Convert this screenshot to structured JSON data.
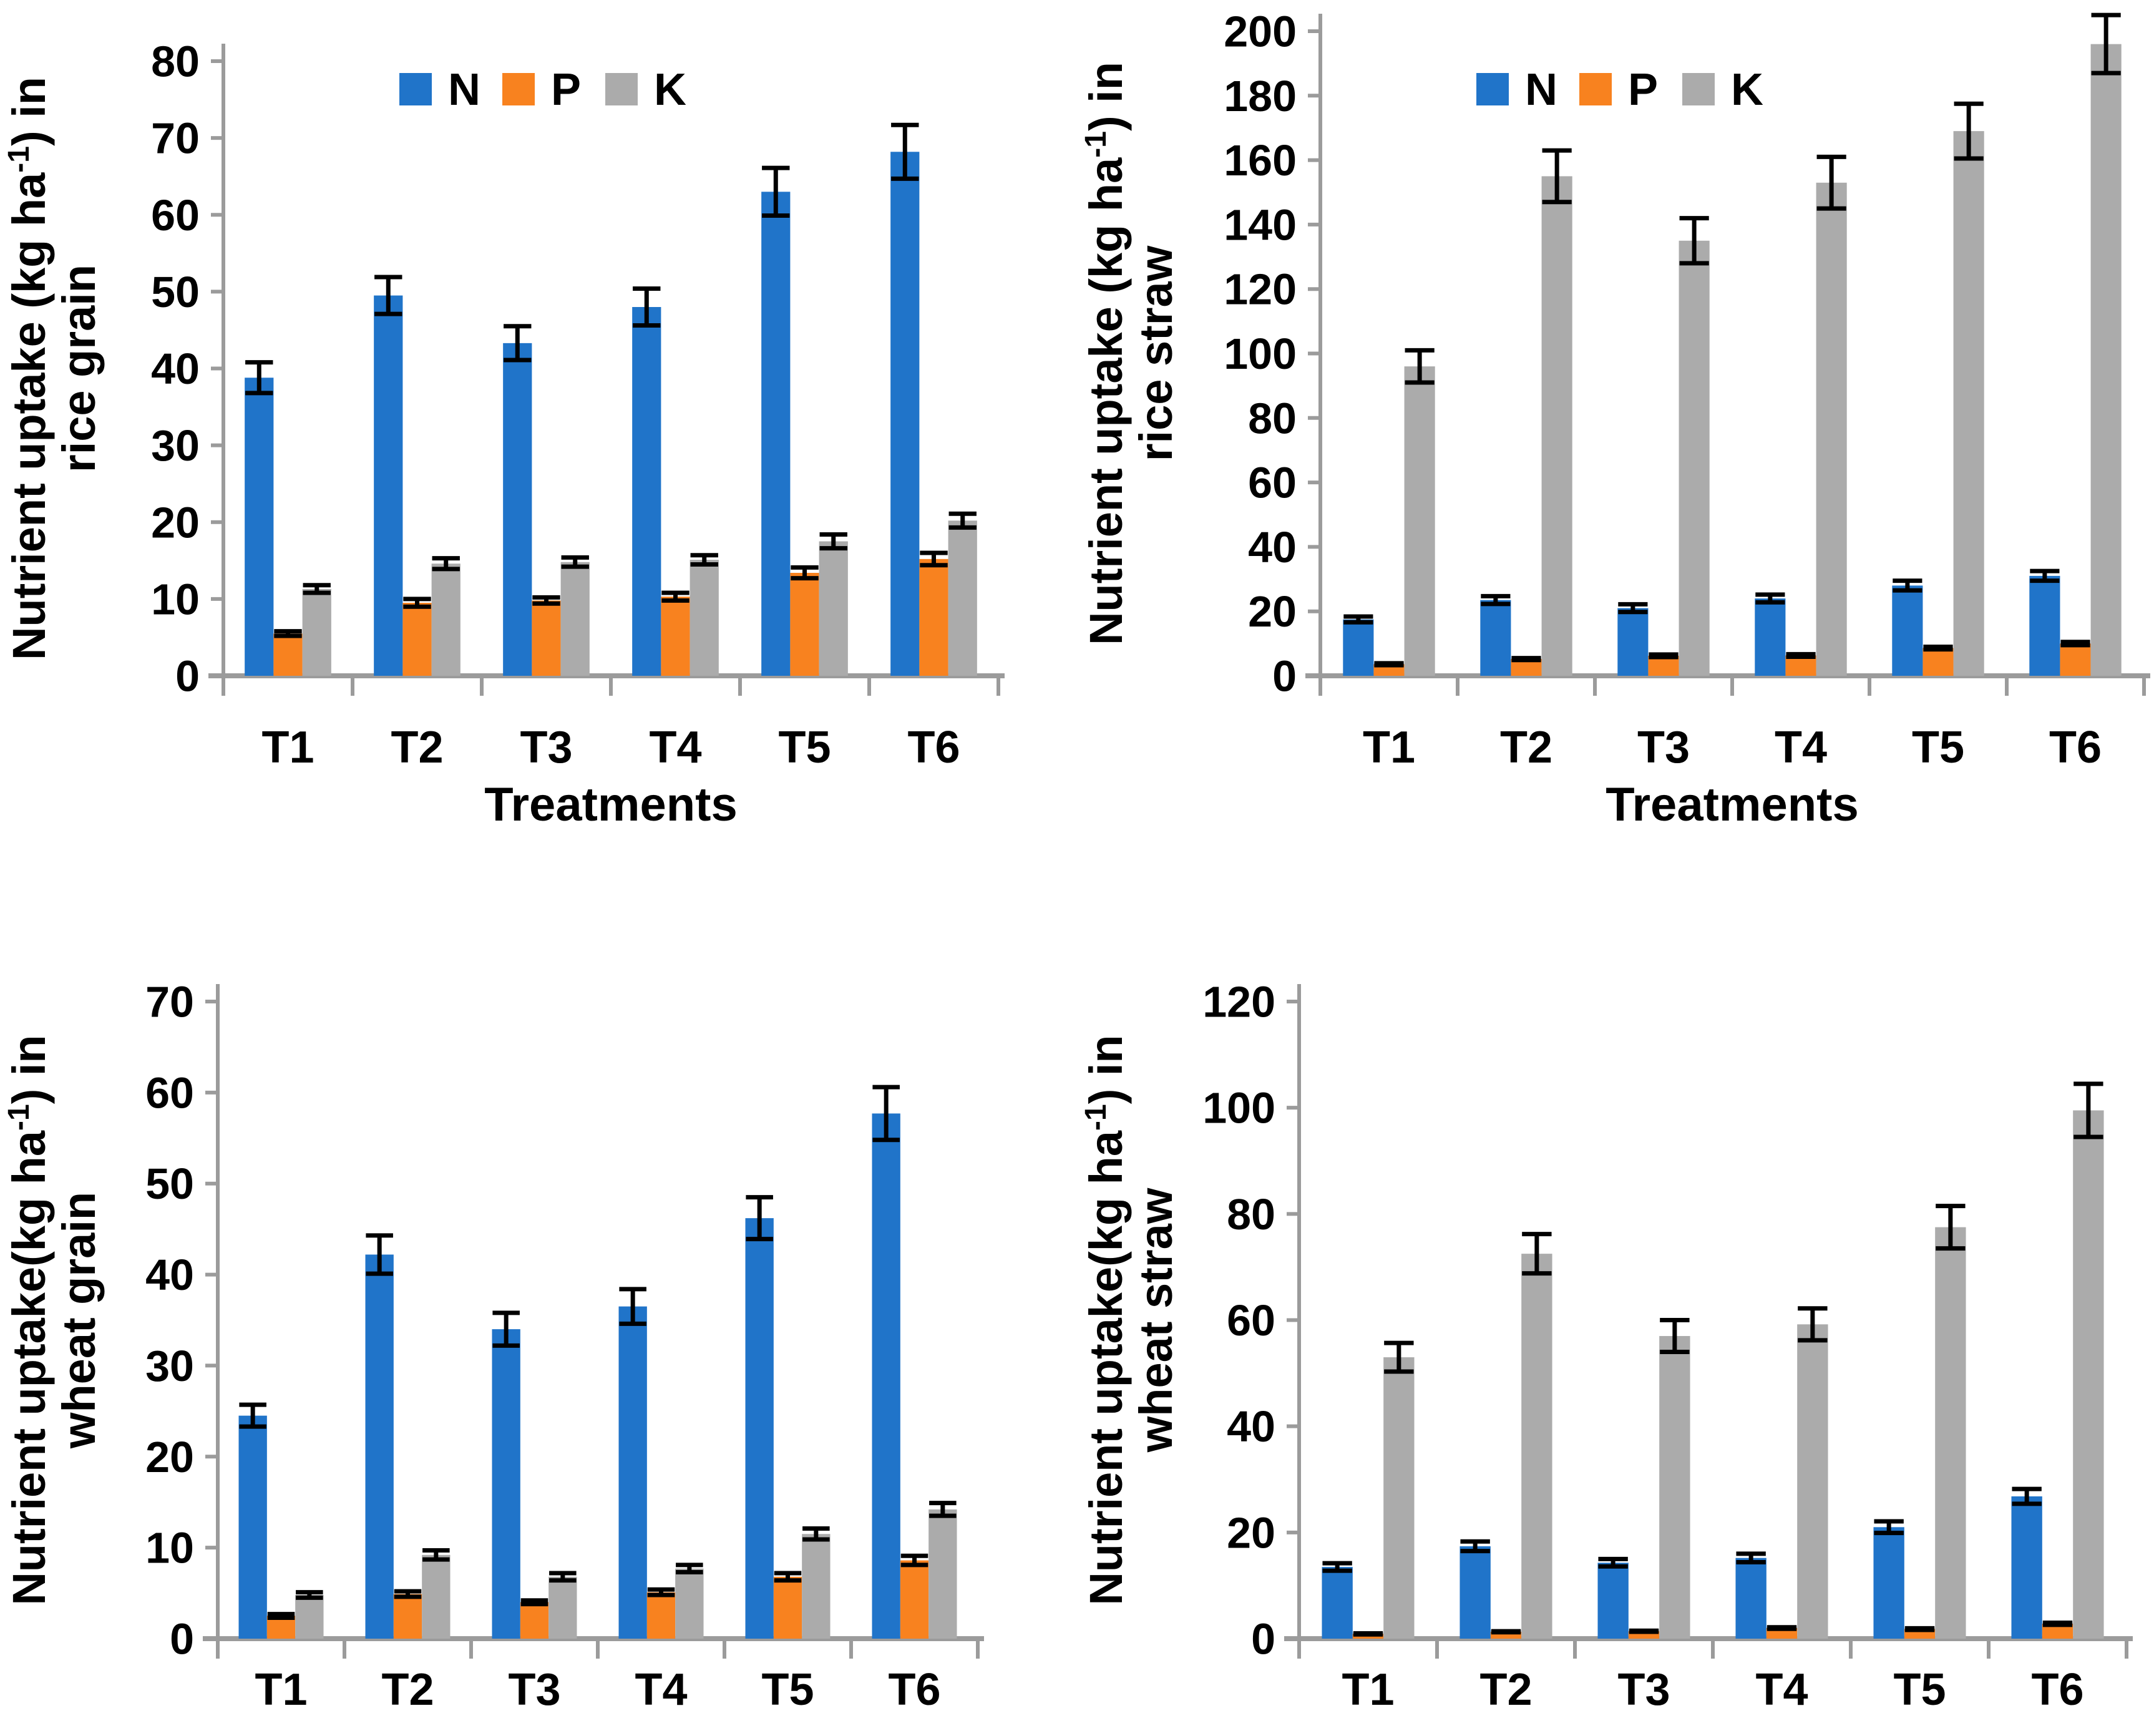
{
  "figure": {
    "background": "#ffffff",
    "colors": {
      "N": "#2074C9",
      "P": "#F8821F",
      "K": "#ABABAB",
      "axis": "#9B9B9B",
      "error": "#000000",
      "text": "#000000"
    },
    "legend_labels": [
      "N",
      "P",
      "K"
    ]
  },
  "chart_data": [
    {
      "type": "bar",
      "name": "rice-grain",
      "ylabel": {
        "pre": "Nutrient uptake (kg ha",
        "sup": "-1",
        "post": ") in",
        "line2": "rice grain"
      },
      "xlabel": "Treatments",
      "legend": true,
      "categories": [
        "T1",
        "T2",
        "T3",
        "T4",
        "T5",
        "T6"
      ],
      "ylim": [
        0,
        80
      ],
      "ytick_step": 10,
      "ytick_labels": [
        "0",
        "10",
        "20",
        "30",
        "40",
        "50",
        "60",
        "70",
        "80"
      ],
      "grid": false,
      "series": [
        {
          "name": "N",
          "values": [
            38.8,
            49.5,
            43.3,
            48.0,
            63.0,
            68.2
          ],
          "errors": [
            2.0,
            2.4,
            2.2,
            2.4,
            3.1,
            3.5
          ]
        },
        {
          "name": "P",
          "values": [
            5.5,
            9.5,
            9.8,
            10.3,
            13.4,
            15.2
          ],
          "errors": [
            0.3,
            0.5,
            0.4,
            0.5,
            0.7,
            0.8
          ]
        },
        {
          "name": "K",
          "values": [
            11.3,
            14.6,
            14.8,
            15.1,
            17.5,
            20.2
          ],
          "errors": [
            0.5,
            0.7,
            0.6,
            0.6,
            0.9,
            0.9
          ]
        }
      ]
    },
    {
      "type": "bar",
      "name": "rice-straw",
      "ylabel": {
        "pre": "Nutrient uptake (kg ha",
        "sup": "-1",
        "post": ") in",
        "line2": "rice straw"
      },
      "xlabel": "Treatments",
      "legend": true,
      "categories": [
        "T1",
        "T2",
        "T3",
        "T4",
        "T5",
        "T6"
      ],
      "ylim": [
        0,
        200
      ],
      "ytick_step": 20,
      "ytick_labels": [
        "0",
        "20",
        "40",
        "60",
        "80",
        "100",
        "120",
        "140",
        "160",
        "180",
        "200"
      ],
      "grid": false,
      "series": [
        {
          "name": "N",
          "values": [
            17.5,
            23.5,
            21.0,
            24.0,
            28.0,
            31.0
          ],
          "errors": [
            0.9,
            1.2,
            1.2,
            1.2,
            1.5,
            1.5
          ]
        },
        {
          "name": "P",
          "values": [
            3.6,
            5.2,
            6.2,
            6.3,
            8.6,
            10.0
          ],
          "errors": [
            0.3,
            0.3,
            0.4,
            0.4,
            0.4,
            0.5
          ]
        },
        {
          "name": "K",
          "values": [
            96,
            155,
            135,
            153,
            169,
            196
          ],
          "errors": [
            5,
            8,
            7,
            8,
            8.5,
            9
          ]
        }
      ]
    },
    {
      "type": "bar",
      "name": "wheat-grain",
      "ylabel": {
        "pre": "Nutrient uptake(kg ha",
        "sup": "-1",
        "post": ") in",
        "line2": "wheat grain"
      },
      "xlabel": "",
      "legend": false,
      "categories": [
        "T1",
        "T2",
        "T3",
        "T4",
        "T5",
        "T6"
      ],
      "ylim": [
        0,
        70
      ],
      "ytick_step": 10,
      "ytick_labels": [
        "0",
        "10",
        "20",
        "30",
        "40",
        "50",
        "60",
        "70"
      ],
      "grid": false,
      "series": [
        {
          "name": "N",
          "values": [
            24.5,
            42.2,
            34.0,
            36.5,
            46.2,
            57.7
          ],
          "errors": [
            1.2,
            2.1,
            1.8,
            1.9,
            2.3,
            2.9
          ]
        },
        {
          "name": "P",
          "values": [
            2.5,
            4.9,
            4.0,
            5.1,
            6.8,
            8.6
          ],
          "errors": [
            0.2,
            0.3,
            0.2,
            0.3,
            0.4,
            0.5
          ]
        },
        {
          "name": "K",
          "values": [
            4.8,
            9.2,
            6.8,
            7.7,
            11.5,
            14.2
          ],
          "errors": [
            0.3,
            0.5,
            0.4,
            0.4,
            0.6,
            0.7
          ]
        }
      ]
    },
    {
      "type": "bar",
      "name": "wheat-straw",
      "ylabel": {
        "pre": "Nutrient uptake(kg ha",
        "sup": "-1",
        "post": ") in",
        "line2": "wheat  straw"
      },
      "xlabel": "",
      "legend": false,
      "categories": [
        "T1",
        "T2",
        "T3",
        "T4",
        "T5",
        "T6"
      ],
      "ylim": [
        0,
        120
      ],
      "ytick_step": 20,
      "ytick_labels": [
        "0",
        "20",
        "40",
        "60",
        "80",
        "100",
        "120"
      ],
      "grid": false,
      "series": [
        {
          "name": "N",
          "values": [
            13.5,
            17.4,
            14.3,
            15.2,
            21.0,
            26.8
          ],
          "errors": [
            0.7,
            0.9,
            0.7,
            0.8,
            1.1,
            1.4
          ]
        },
        {
          "name": "P",
          "values": [
            0.9,
            1.3,
            1.4,
            2.0,
            1.8,
            2.8
          ],
          "errors": [
            0.1,
            0.1,
            0.1,
            0.15,
            0.15,
            0.2
          ]
        },
        {
          "name": "K",
          "values": [
            53,
            72.5,
            57,
            59.2,
            77.5,
            99.5
          ],
          "errors": [
            2.7,
            3.7,
            3.0,
            3.0,
            4.0,
            5.0
          ]
        }
      ]
    }
  ]
}
